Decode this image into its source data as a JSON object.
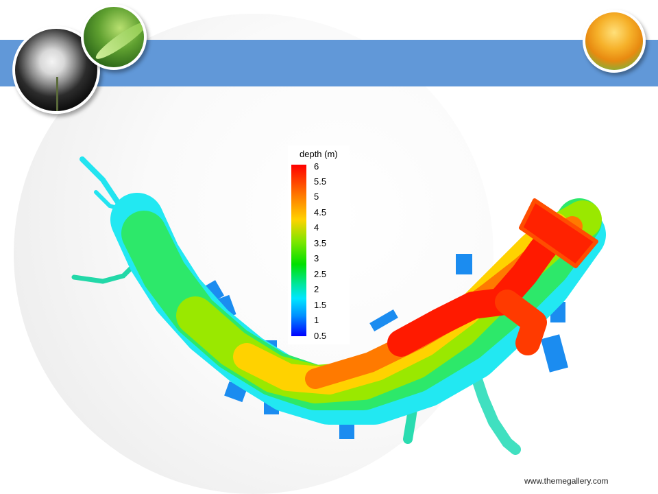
{
  "legend": {
    "title": "depth (m)",
    "ticks": [
      "6",
      "5.5",
      "5",
      "4.5",
      "4",
      "3.5",
      "3",
      "2.5",
      "2",
      "1.5",
      "1",
      "0.5"
    ]
  },
  "footer": {
    "url": "www.themegallery.com"
  }
}
